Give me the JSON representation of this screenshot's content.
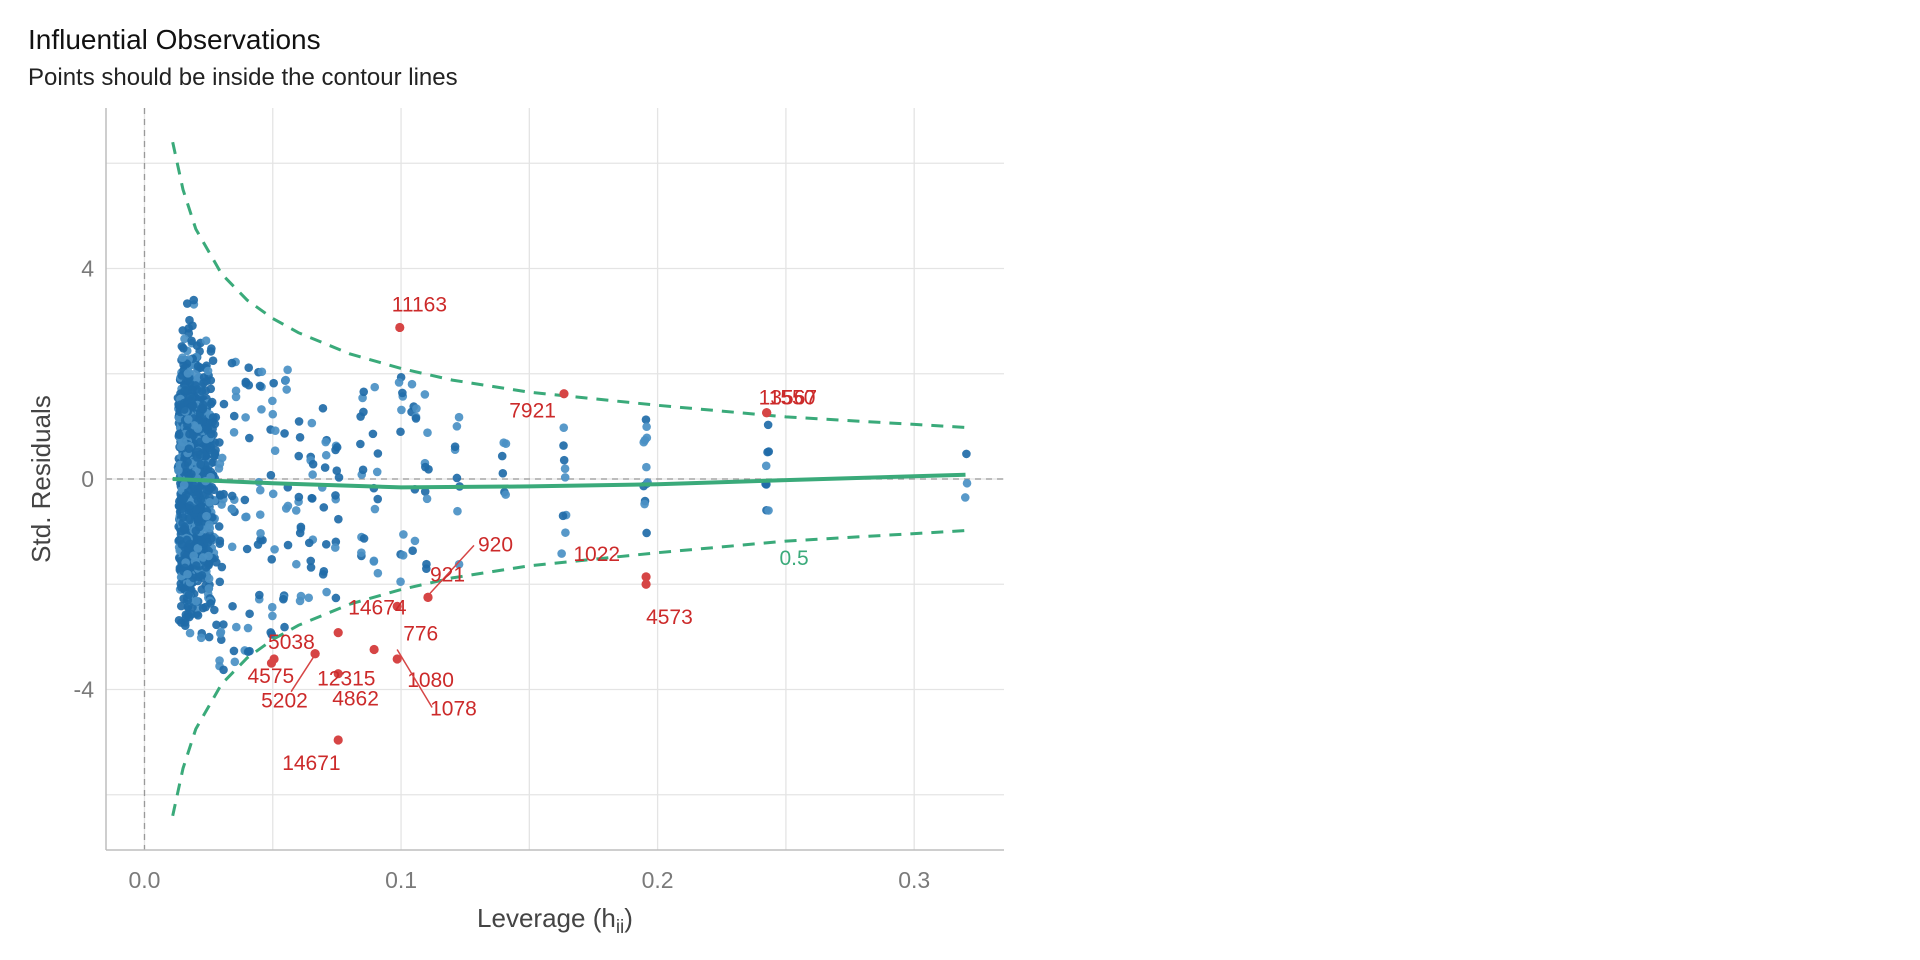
{
  "chart_data": {
    "type": "scatter",
    "title": "Influential Observations",
    "subtitle": "Points should be inside the contour lines",
    "xlabel": "Leverage (h",
    "xlabel_sub": "ii",
    "xlabel_close": ")",
    "ylabel": "Std. Residuals",
    "xlim": [
      -0.015,
      0.335
    ],
    "ylim": [
      -7.05,
      7.05
    ],
    "x_ticks": [
      0.0,
      0.1,
      0.2,
      0.3
    ],
    "x_tick_labels": [
      "0.0",
      "0.1",
      "0.2",
      "0.3"
    ],
    "y_ticks": [
      -4,
      0,
      4
    ],
    "y_tick_labels": [
      "-4",
      "0",
      "4"
    ],
    "y_minor_gridlines": [
      -6,
      -2,
      2,
      6
    ],
    "x_minor_gridlines": [
      0.05,
      0.15,
      0.25
    ],
    "grid": true,
    "contour_level_label": "0.5",
    "colors": {
      "points": "#1f6ba8",
      "points_light": "#4a90c4",
      "influential": "#d64545",
      "label": "#cc2a2a",
      "contour": "#3aaa7a",
      "smooth": "#3aaa7a",
      "grid": "#e4e4e4",
      "reference": "#999999"
    },
    "influential_points": [
      {
        "id": "11163",
        "x": 0.0995,
        "y": 2.88
      },
      {
        "id": "7921",
        "x": 0.1635,
        "y": 1.62
      },
      {
        "id": "13567",
        "x": 0.2425,
        "y": 1.26
      },
      {
        "id": "1550",
        "x": 0.2425,
        "y": 1.26
      },
      {
        "id": "920",
        "x": 0.1105,
        "y": -2.25
      },
      {
        "id": "921",
        "x": 0.1105,
        "y": -2.25
      },
      {
        "id": "776",
        "x": 0.0985,
        "y": -2.42
      },
      {
        "id": "1022",
        "x": 0.1955,
        "y": -1.86
      },
      {
        "id": "4573",
        "x": 0.1955,
        "y": -2.0
      },
      {
        "id": "14674",
        "x": 0.0755,
        "y": -2.92
      },
      {
        "id": "5038",
        "x": 0.0505,
        "y": -3.42
      },
      {
        "id": "12315",
        "x": 0.0665,
        "y": -3.32
      },
      {
        "id": "4575",
        "x": 0.0495,
        "y": -3.5
      },
      {
        "id": "5202",
        "x": 0.0665,
        "y": -3.32
      },
      {
        "id": "4862",
        "x": 0.0755,
        "y": -3.7
      },
      {
        "id": "1080",
        "x": 0.0985,
        "y": -3.42
      },
      {
        "id": "1078",
        "x": 0.0895,
        "y": -3.24
      },
      {
        "id": "14671",
        "x": 0.0755,
        "y": -4.96
      }
    ],
    "contour_upper": [
      {
        "x": 0.011,
        "y": 6.4
      },
      {
        "x": 0.015,
        "y": 5.5
      },
      {
        "x": 0.02,
        "y": 4.75
      },
      {
        "x": 0.03,
        "y": 3.9
      },
      {
        "x": 0.04,
        "y": 3.4
      },
      {
        "x": 0.05,
        "y": 3.05
      },
      {
        "x": 0.06,
        "y": 2.78
      },
      {
        "x": 0.08,
        "y": 2.38
      },
      {
        "x": 0.1,
        "y": 2.1
      },
      {
        "x": 0.12,
        "y": 1.88
      },
      {
        "x": 0.15,
        "y": 1.65
      },
      {
        "x": 0.2,
        "y": 1.4
      },
      {
        "x": 0.25,
        "y": 1.18
      },
      {
        "x": 0.32,
        "y": 0.98
      }
    ],
    "contour_lower": [
      {
        "x": 0.011,
        "y": -6.4
      },
      {
        "x": 0.015,
        "y": -5.5
      },
      {
        "x": 0.02,
        "y": -4.75
      },
      {
        "x": 0.03,
        "y": -3.9
      },
      {
        "x": 0.04,
        "y": -3.4
      },
      {
        "x": 0.05,
        "y": -3.05
      },
      {
        "x": 0.06,
        "y": -2.78
      },
      {
        "x": 0.08,
        "y": -2.38
      },
      {
        "x": 0.1,
        "y": -2.1
      },
      {
        "x": 0.12,
        "y": -1.88
      },
      {
        "x": 0.15,
        "y": -1.65
      },
      {
        "x": 0.2,
        "y": -1.4
      },
      {
        "x": 0.25,
        "y": -1.18
      },
      {
        "x": 0.32,
        "y": -0.98
      }
    ],
    "smooth_line": [
      {
        "x": 0.011,
        "y": 0.0
      },
      {
        "x": 0.05,
        "y": -0.08
      },
      {
        "x": 0.1,
        "y": -0.16
      },
      {
        "x": 0.15,
        "y": -0.14
      },
      {
        "x": 0.2,
        "y": -0.1
      },
      {
        "x": 0.25,
        "y": -0.02
      },
      {
        "x": 0.32,
        "y": 0.08
      }
    ],
    "leverage_columns": [
      {
        "x": 0.025,
        "n": 20,
        "ymin": -4.4,
        "ymax": 2.7
      },
      {
        "x": 0.03,
        "n": 18,
        "ymin": -3.8,
        "ymax": 2.5
      },
      {
        "x": 0.035,
        "n": 16,
        "ymin": -3.5,
        "ymax": 2.3
      },
      {
        "x": 0.04,
        "n": 15,
        "ymin": -3.3,
        "ymax": 2.2
      },
      {
        "x": 0.045,
        "n": 14,
        "ymin": -3.1,
        "ymax": 2.1
      },
      {
        "x": 0.05,
        "n": 14,
        "ymin": -3.0,
        "ymax": 3.1
      },
      {
        "x": 0.055,
        "n": 13,
        "ymin": -2.9,
        "ymax": 2.1
      },
      {
        "x": 0.06,
        "n": 12,
        "ymin": -2.8,
        "ymax": 1.9
      },
      {
        "x": 0.065,
        "n": 12,
        "ymin": -2.6,
        "ymax": 1.9
      },
      {
        "x": 0.07,
        "n": 11,
        "ymin": -2.5,
        "ymax": 1.8
      },
      {
        "x": 0.075,
        "n": 11,
        "ymin": -2.4,
        "ymax": 2.0
      },
      {
        "x": 0.085,
        "n": 11,
        "ymin": -2.2,
        "ymax": 2.0
      },
      {
        "x": 0.09,
        "n": 10,
        "ymin": -2.1,
        "ymax": 1.9
      },
      {
        "x": 0.1,
        "n": 10,
        "ymin": -2.0,
        "ymax": 2.0
      },
      {
        "x": 0.105,
        "n": 9,
        "ymin": -1.9,
        "ymax": 1.9
      },
      {
        "x": 0.11,
        "n": 9,
        "ymin": -1.8,
        "ymax": 1.9
      },
      {
        "x": 0.122,
        "n": 8,
        "ymin": -1.7,
        "ymax": 1.6
      },
      {
        "x": 0.14,
        "n": 6,
        "ymin": -0.3,
        "ymax": 0.9
      },
      {
        "x": 0.1635,
        "n": 9,
        "ymin": -1.5,
        "ymax": 1.4
      },
      {
        "x": 0.1955,
        "n": 12,
        "ymin": -1.2,
        "ymax": 1.2
      },
      {
        "x": 0.2425,
        "n": 8,
        "ymin": -0.9,
        "ymax": 1.1
      },
      {
        "x": 0.32,
        "n": 3,
        "ymin": -0.7,
        "ymax": 0.7
      }
    ]
  }
}
